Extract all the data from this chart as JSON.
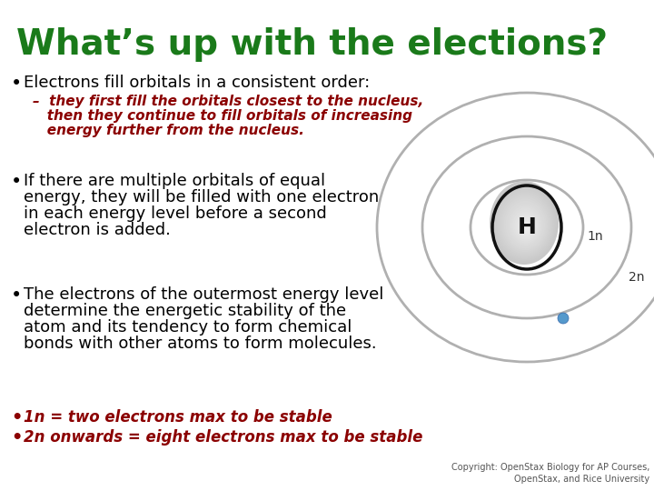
{
  "background_color": "#ffffff",
  "title": "What’s up with the elections?",
  "title_color": "#1a7a1a",
  "title_fontsize": 28,
  "bullet1": "Electrons fill orbitals in a consistent order:",
  "bullet1_color": "#000000",
  "bullet1_fontsize": 13,
  "sub_bullet_line1": "–  they first fill the orbitals closest to the nucleus,",
  "sub_bullet_line2": "   then they continue to fill orbitals of increasing",
  "sub_bullet_line3": "   energy further from the nucleus.",
  "sub_bullet_color": "#8b0000",
  "sub_bullet_fontsize": 11,
  "bullet2_lines": [
    "If there are multiple orbitals of equal",
    "energy, they will be filled with one electron",
    "in each energy level before a second",
    "electron is added."
  ],
  "bullet2_color": "#000000",
  "bullet2_fontsize": 13,
  "bullet3_lines": [
    "The electrons of the outermost energy level",
    "determine the energetic stability of the",
    "atom and its tendency to form chemical",
    "bonds with other atoms to form molecules."
  ],
  "bullet3_color": "#000000",
  "bullet3_fontsize": 13,
  "bullet4": "1n = two electrons max to be stable",
  "bullet4_color": "#8b0000",
  "bullet4_fontsize": 12,
  "bullet5": "2n onwards = eight electrons max to be stable",
  "bullet5_color": "#8b0000",
  "bullet5_fontsize": 12,
  "copyright": "Copyright: OpenStax Biology for AP Courses,\nOpenStax, and Rice University",
  "copyright_color": "#555555",
  "copyright_fontsize": 7,
  "orbit_color": "#b0b0b0",
  "nucleus_color_top": "#e8e8e8",
  "nucleus_color_bot": "#c0c0c0",
  "nucleus_outline": "#111111",
  "electron_color": "#5599cc",
  "label_color": "#333333"
}
